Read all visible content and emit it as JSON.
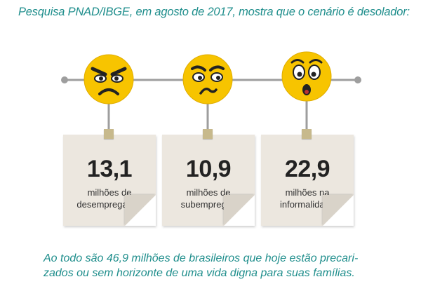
{
  "headline": "Pesquisa PNAD/IBGE, em agosto de 2017, mostra que o cenário é desolador:",
  "colors": {
    "accent_text": "#1f8e8c",
    "face_yellow": "#f7c400",
    "note_bg": "#ece7df",
    "timeline": "#9e9e9e",
    "pin": "#c7b98c"
  },
  "stats": [
    {
      "face_icon": "angry-face-icon",
      "value": "13,1",
      "desc_line1": "milhões de",
      "desc_line2": "desempregados"
    },
    {
      "face_icon": "frowning-face-icon",
      "value": "10,9",
      "desc_line1": "milhões de",
      "desc_line2": "subempregos"
    },
    {
      "face_icon": "shocked-face-icon",
      "value": "22,9",
      "desc_line1": "milhões na",
      "desc_line2": "informalidade"
    }
  ],
  "footer": {
    "line1": "Ao todo são 46,9 milhões de brasileiros que hoje estão precari-",
    "line2": "zados ou sem horizonte de uma vida digna para suas famílias."
  }
}
